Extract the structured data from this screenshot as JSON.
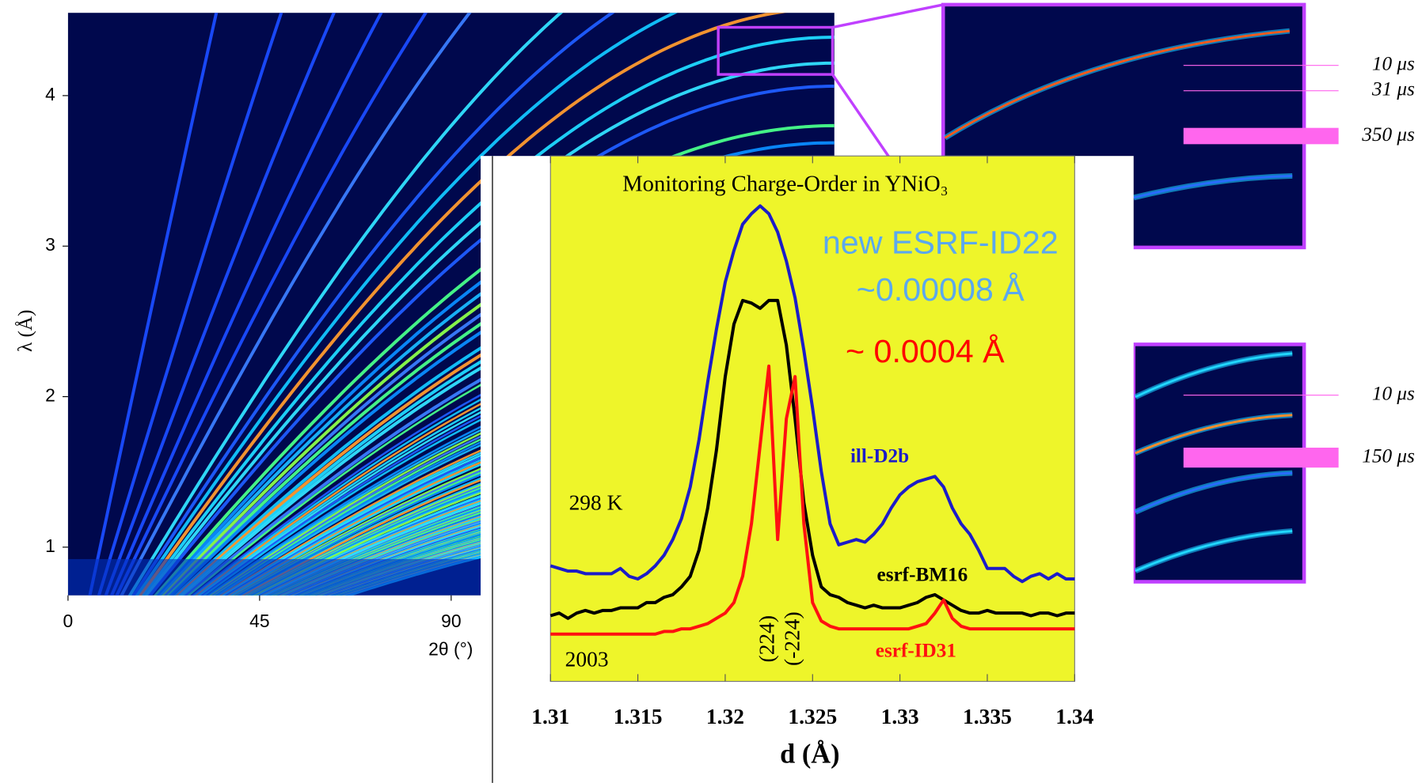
{
  "chart_data": [
    {
      "type": "image",
      "xlabel": "2θ (°)",
      "ylabel": "λ (Å)",
      "xlim": [
        0,
        180
      ],
      "ylim": [
        0.68,
        4.55
      ],
      "xticks": [
        0,
        45,
        90
      ],
      "yticks": [
        1,
        2,
        3,
        4
      ]
    },
    {
      "type": "line",
      "title": "Monitoring Charge-Order in YNiO₃",
      "xlabel": "d (Å)",
      "xlim": [
        1.31,
        1.34
      ],
      "ylim": [
        0,
        100
      ],
      "xticks": [
        1.31,
        1.315,
        1.32,
        1.325,
        1.33,
        1.335,
        1.34
      ],
      "annotations": [
        "new ESRF-ID22",
        "~0.00008 Å",
        "~ 0.0004 Å",
        "298  K",
        "2003",
        "(224)",
        "(-224)"
      ],
      "x": [
        1.31,
        1.3105,
        1.311,
        1.3115,
        1.312,
        1.3125,
        1.313,
        1.3135,
        1.314,
        1.3145,
        1.315,
        1.3155,
        1.316,
        1.3165,
        1.317,
        1.3175,
        1.318,
        1.3185,
        1.319,
        1.3195,
        1.32,
        1.3205,
        1.321,
        1.3215,
        1.322,
        1.3225,
        1.323,
        1.3235,
        1.324,
        1.3245,
        1.325,
        1.3255,
        1.326,
        1.3265,
        1.327,
        1.3275,
        1.328,
        1.3285,
        1.329,
        1.3295,
        1.33,
        1.3305,
        1.331,
        1.3315,
        1.332,
        1.3325,
        1.333,
        1.3335,
        1.334,
        1.3345,
        1.335,
        1.3355,
        1.336,
        1.3365,
        1.337,
        1.3375,
        1.338,
        1.3385,
        1.339,
        1.3395,
        1.34
      ],
      "series": [
        {
          "name": "ill-D2b",
          "color": "#1c1cc8",
          "values": [
            22,
            21.5,
            21,
            21,
            20.5,
            20.5,
            20.5,
            20.5,
            21.5,
            20,
            19.5,
            20.5,
            22,
            24,
            27,
            31,
            37,
            46,
            57,
            67,
            76,
            82,
            87,
            89,
            90.5,
            89,
            85.5,
            80,
            73,
            63,
            52,
            40,
            30,
            26,
            26.5,
            27,
            26.5,
            28,
            30,
            33,
            35.5,
            37,
            38,
            38.5,
            39,
            37,
            33,
            30,
            28,
            25,
            21.5,
            21.5,
            21.5,
            20,
            19,
            20,
            20.5,
            19.5,
            20.5,
            19.5,
            19.5
          ]
        },
        {
          "name": "esrf-BM16",
          "color": "#000000",
          "values": [
            12.5,
            13,
            12,
            13,
            13.5,
            13,
            13.5,
            13.5,
            14,
            14,
            14,
            15,
            15,
            16,
            16.5,
            18,
            20,
            25,
            33,
            44,
            58,
            68,
            72.5,
            72,
            71,
            72.5,
            72.5,
            64,
            50,
            34,
            24,
            18,
            16.5,
            16,
            15,
            14.5,
            14,
            14.5,
            14,
            14,
            14,
            14.5,
            15,
            16,
            16.5,
            15.5,
            14.5,
            13.5,
            13,
            13,
            13.5,
            13,
            13,
            13,
            13,
            12.5,
            13,
            13,
            12.5,
            13,
            13
          ]
        },
        {
          "name": "esrf-ID31",
          "color": "#ff1010",
          "values": [
            9,
            9,
            9,
            9,
            9,
            9,
            9,
            9,
            9,
            9,
            9,
            9,
            9,
            9.5,
            9.5,
            10,
            10,
            10.5,
            11,
            12,
            13,
            15,
            20,
            30,
            45,
            60,
            27,
            50,
            58,
            30,
            15,
            11.5,
            10.5,
            10,
            10,
            10,
            10,
            10,
            10,
            10,
            10,
            10,
            10.5,
            11,
            13,
            15.5,
            12,
            10.5,
            10,
            10,
            10,
            10,
            10,
            10,
            10,
            10,
            10,
            10,
            10,
            10,
            10
          ]
        }
      ]
    }
  ],
  "insets": [
    {
      "labels": [
        "10 μs",
        "31 μs",
        "350 μs"
      ]
    },
    {
      "labels": [
        "10 μs",
        "150 μs"
      ]
    }
  ]
}
